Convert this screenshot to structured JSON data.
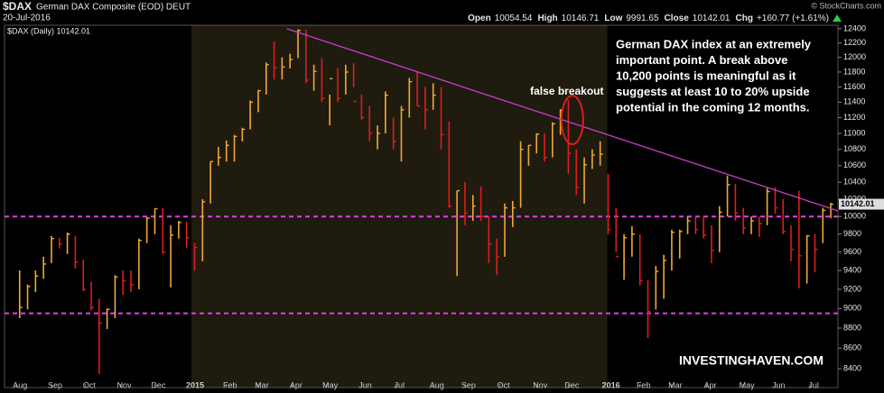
{
  "header": {
    "symbol": "$DAX",
    "name": "German DAX Composite (EOD) DEUT",
    "date": "20-Jul-2016",
    "copyright": "© StockCharts.com",
    "quote": [
      {
        "label": "Open",
        "value": 10054.54
      },
      {
        "label": "High",
        "value": 10146.71
      },
      {
        "label": "Low",
        "value": 9991.65
      },
      {
        "label": "Close",
        "value": 10142.01
      },
      {
        "label": "Chg",
        "value": "+160.77 (+1.61%)"
      }
    ]
  },
  "chart_data": {
    "type": "ohlc",
    "legend": "$DAX (Daily) 10142.01",
    "up_color": "#f0a838",
    "down_color": "#e01c1c",
    "shade_color": "#1f1b0f",
    "log_scale": true,
    "grid": false,
    "xlim": [
      -1.9,
      102.9
    ],
    "ylim": [
      8220,
      12450
    ],
    "yticks": [
      8400,
      8600,
      8800,
      9000,
      9200,
      9400,
      9600,
      9800,
      10000,
      10200,
      10400,
      10600,
      10800,
      11000,
      11200,
      11400,
      11600,
      11800,
      12000,
      12200,
      12400
    ],
    "xticks": [
      {
        "value": -0.4,
        "label": "Aug"
      },
      {
        "value": 4,
        "label": "Sep"
      },
      {
        "value": 8.3,
        "label": "Oct"
      },
      {
        "value": 12.7,
        "label": "Nov"
      },
      {
        "value": 17,
        "label": "Dec"
      },
      {
        "value": 21.6,
        "label": "2015"
      },
      {
        "value": 26,
        "label": "Feb"
      },
      {
        "value": 30,
        "label": "Mar"
      },
      {
        "value": 34.3,
        "label": "Apr"
      },
      {
        "value": 38.6,
        "label": "May"
      },
      {
        "value": 43,
        "label": "Jun"
      },
      {
        "value": 47.3,
        "label": "Jul"
      },
      {
        "value": 52,
        "label": "Aug"
      },
      {
        "value": 56,
        "label": "Sep"
      },
      {
        "value": 60.4,
        "label": "Oct"
      },
      {
        "value": 65,
        "label": "Nov"
      },
      {
        "value": 69,
        "label": "Dec"
      },
      {
        "value": 73.9,
        "label": "2016"
      },
      {
        "value": 78,
        "label": "Feb"
      },
      {
        "value": 82,
        "label": "Mar"
      },
      {
        "value": 86.4,
        "label": "Apr"
      },
      {
        "value": 91,
        "label": "May"
      },
      {
        "value": 95,
        "label": "Jun"
      },
      {
        "value": 99.4,
        "label": "Jul"
      }
    ],
    "high": [
      9400,
      9250,
      9400,
      9550,
      9780,
      9760,
      9820,
      9780,
      9520,
      9280,
      9100,
      9000,
      9350,
      9400,
      9400,
      9750,
      9990,
      10090,
      10100,
      9900,
      9950,
      9940,
      9700,
      10200,
      10650,
      10830,
      10910,
      10980,
      11070,
      11420,
      11560,
      11930,
      12220,
      12000,
      12050,
      12390,
      12390,
      11900,
      11990,
      11500,
      11850,
      11900,
      11920,
      11500,
      11350,
      11100,
      11540,
      11200,
      11350,
      11720,
      11800,
      11600,
      11650,
      11600,
      11150,
      10300,
      10400,
      10250,
      10350,
      10000,
      9750,
      10150,
      10180,
      10900,
      10850,
      11000,
      11000,
      11140,
      11310,
      11430,
      10800,
      10700,
      10800,
      10900,
      10500,
      10100,
      9800,
      9890,
      9800,
      9300,
      9450,
      9570,
      9850,
      9850,
      10000,
      10000,
      10000,
      9900,
      10120,
      10480,
      10380,
      10100,
      10000,
      10000,
      10330,
      10340,
      10200,
      9900,
      10300,
      9790,
      9800,
      10100,
      10160
    ],
    "low": [
      8900,
      8990,
      9170,
      9310,
      9480,
      9640,
      9580,
      9420,
      9180,
      8980,
      8350,
      8790,
      8900,
      9140,
      9170,
      9200,
      9700,
      9800,
      9580,
      9220,
      9750,
      9650,
      9400,
      9500,
      10150,
      10600,
      10650,
      10650,
      10900,
      11050,
      11270,
      11500,
      11700,
      11700,
      11850,
      11990,
      11650,
      11550,
      11400,
      11100,
      11400,
      11500,
      11600,
      11170,
      10900,
      10800,
      11000,
      10800,
      10650,
      11200,
      11350,
      11050,
      11300,
      10800,
      10100,
      9340,
      9900,
      9950,
      9950,
      9480,
      9350,
      9550,
      9880,
      10100,
      10600,
      10750,
      10650,
      10700,
      10980,
      10500,
      10250,
      10150,
      10560,
      10600,
      9800,
      9600,
      9300,
      9550,
      9240,
      8700,
      8990,
      9100,
      9400,
      9530,
      9800,
      9800,
      9750,
      9480,
      9600,
      10000,
      9950,
      9800,
      9800,
      9770,
      9900,
      10030,
      9800,
      9500,
      9210,
      9260,
      9380,
      9700,
      9980
    ],
    "close": [
      9010,
      9230,
      9340,
      9470,
      9750,
      9690,
      9800,
      9490,
      9200,
      9010,
      8850,
      8990,
      9330,
      9290,
      9250,
      9730,
      9980,
      10090,
      9600,
      9790,
      9930,
      9760,
      9650,
      10170,
      10650,
      10700,
      10850,
      10960,
      11050,
      11400,
      11550,
      11900,
      11860,
      11870,
      11970,
      12375,
      11690,
      11810,
      11450,
      11710,
      11450,
      11800,
      11410,
      11200,
      11000,
      11000,
      11490,
      10900,
      11300,
      11670,
      11350,
      11300,
      11490,
      10985,
      10120,
      10300,
      10040,
      10120,
      10000,
      9690,
      9550,
      10100,
      10100,
      10800,
      10850,
      10990,
      10700,
      11120,
      11290,
      10750,
      10340,
      10610,
      10730,
      10740,
      9850,
      9550,
      9760,
      9800,
      9290,
      8970,
      9390,
      9510,
      9820,
      9830,
      9950,
      9850,
      9790,
      9620,
      10050,
      10370,
      10040,
      9870,
      9950,
      9920,
      10290,
      10100,
      9830,
      9630,
      9560,
      9780,
      9630,
      10070,
      10142.01
    ],
    "hlines": [
      10000,
      8950
    ],
    "hline_color": "#e040e8",
    "trendline": {
      "x": [
        33.6,
        102.9
      ],
      "y": [
        12400,
        10065
      ],
      "color": "#c640c6"
    },
    "annotations": [
      {
        "text": "false breakout",
        "x": 69.5,
        "y": 11170,
        "color": "#e01c1c"
      }
    ],
    "note": [
      "German DAX index at an extremely",
      "important point. A break above",
      "10,200 points is meaningful as it",
      "suggests at least 10 to 20% upside",
      "potential in the coming 12 months."
    ],
    "watermark": "INVESTINGHAVEN.COM"
  }
}
